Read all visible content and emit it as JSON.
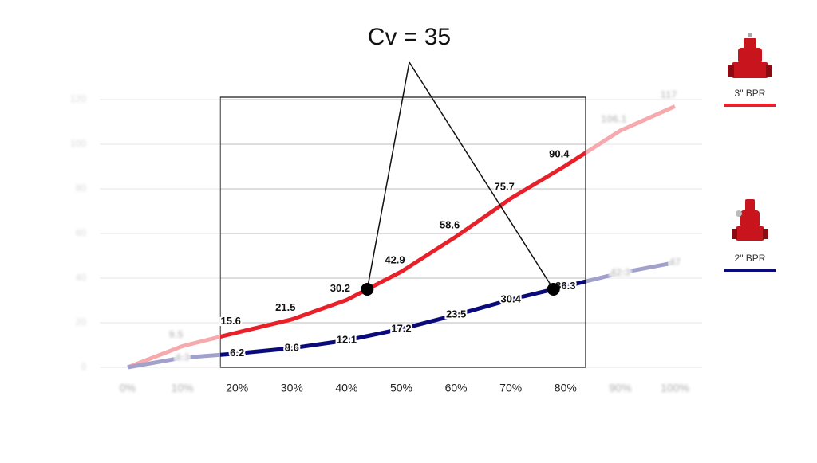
{
  "chart_data": {
    "type": "line",
    "categories": [
      "0%",
      "10%",
      "20%",
      "30%",
      "40%",
      "50%",
      "60%",
      "70%",
      "80%",
      "90%",
      "100%"
    ],
    "series": [
      {
        "name": "3\" BPR",
        "color": "#e8202a",
        "values": [
          0,
          9.5,
          15.6,
          21.5,
          30.2,
          42.9,
          58.6,
          75.7,
          90.4,
          106.1,
          117
        ]
      },
      {
        "name": "2\" BPR",
        "color": "#0a0a7a",
        "values": [
          0,
          4.3,
          6.2,
          8.6,
          12.1,
          17.2,
          23.5,
          30.4,
          36.3,
          42.3,
          47
        ]
      }
    ],
    "ylim": [
      0,
      120
    ],
    "yticks": [
      0,
      20,
      40,
      60,
      80,
      100,
      120
    ],
    "grid": true,
    "annotation": {
      "text": "Cv = 35",
      "value": 35
    }
  }
}
